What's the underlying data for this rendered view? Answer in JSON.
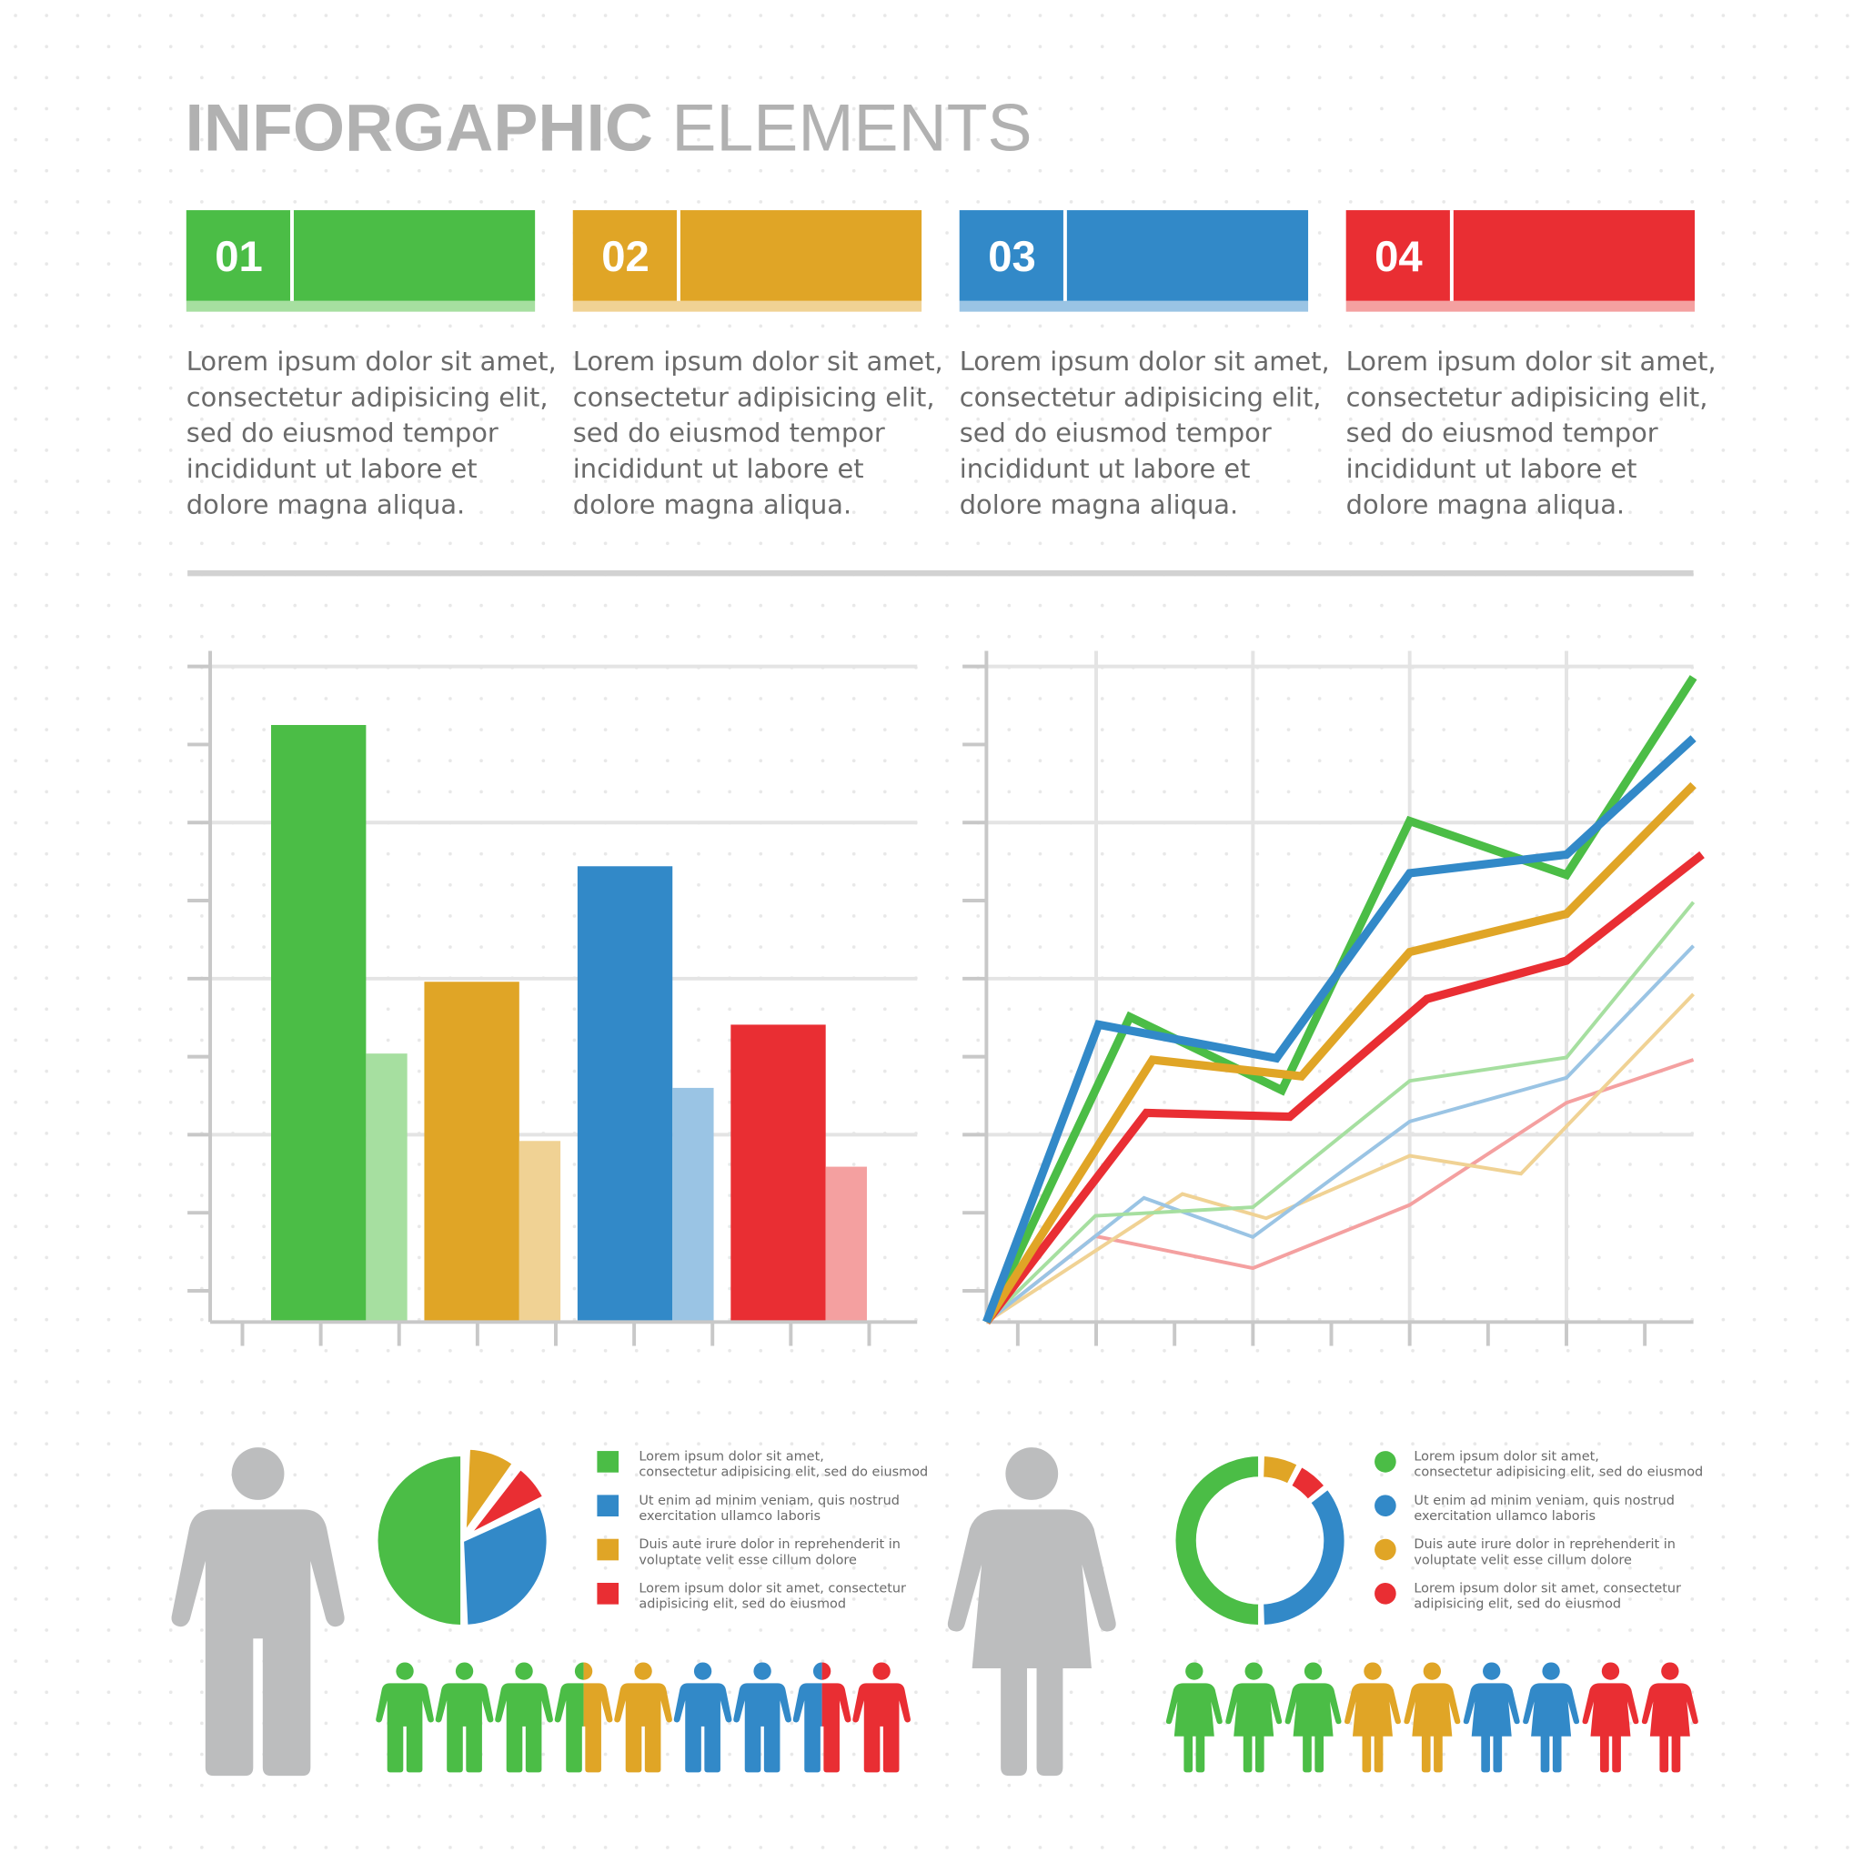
{
  "title": {
    "bold": "INFORGAPHIC",
    "light": "ELEMENTS"
  },
  "cards": [
    {
      "number": "01",
      "color": "#4bbd46",
      "light": "#a6dfa0",
      "text": [
        "Lorem ipsum dolor sit amet,",
        "consectetur adipisicing elit,",
        "sed do eiusmod tempor",
        "incididunt ut labore et",
        "dolore magna aliqua."
      ]
    },
    {
      "number": "02",
      "color": "#e0a526",
      "light": "#f0d294",
      "text": [
        "Lorem ipsum dolor sit amet,",
        "consectetur adipisicing elit,",
        "sed do eiusmod tempor",
        "incididunt ut labore et",
        "dolore magna aliqua."
      ]
    },
    {
      "number": "03",
      "color": "#3289c8",
      "light": "#9ac4e4",
      "text": [
        "Lorem ipsum dolor sit amet,",
        "consectetur adipisicing elit,",
        "sed do eiusmod tempor",
        "incididunt ut labore et",
        "dolore magna aliqua."
      ]
    },
    {
      "number": "04",
      "color": "#e92e33",
      "light": "#f4a0a0",
      "text": [
        "Lorem ipsum dolor sit amet,",
        "consectetur adipisicing elit,",
        "sed do eiusmod tempor",
        "incididunt ut labore et",
        "dolore magna aliqua."
      ]
    }
  ],
  "chart_data": [
    {
      "type": "bar",
      "categories": [
        null,
        null,
        null,
        null
      ],
      "series": [
        {
          "colors": [
            "#4bbd46",
            "#e0a526",
            "#3289c8",
            "#e92e33"
          ],
          "values": [
            76.5,
            43.6,
            58.4,
            38.1
          ]
        },
        {
          "colors": [
            "#a6dfa0",
            "#f0d294",
            "#9ac4e4",
            "#f4a0a0"
          ],
          "values": [
            34.4,
            23.2,
            30,
            19.9
          ]
        }
      ],
      "ylim": [
        0,
        86
      ],
      "yticks": [
        4,
        14,
        24,
        34,
        44,
        54,
        64,
        74,
        84
      ],
      "grid": true
    },
    {
      "type": "line",
      "xlim": [
        0,
        90.2
      ],
      "xticks": [
        4,
        14,
        24,
        34,
        44,
        54,
        64,
        74,
        84
      ],
      "ylim": [
        0,
        86
      ],
      "yticks": [
        4,
        14,
        24,
        34,
        44,
        54,
        64,
        74,
        84
      ],
      "grid": true,
      "series": [
        {
          "color": "#3289c8",
          "x": [
            0,
            14.3,
            37.0,
            54.0,
            74.0,
            90.2
          ],
          "values": [
            0,
            38.1,
            33.8,
            57.5,
            59.9,
            74.8
          ]
        },
        {
          "color": "#e0a526",
          "x": [
            0,
            21.2,
            40.2,
            54.0,
            74.0,
            90.2
          ],
          "values": [
            0,
            33.6,
            31.5,
            47.4,
            52.3,
            68.8
          ]
        },
        {
          "color": "#e92e33",
          "x": [
            0,
            20.4,
            38.7,
            56.2,
            74.0,
            91.3
          ],
          "values": [
            0,
            26.8,
            26.3,
            41.4,
            46.3,
            59.9
          ]
        },
        {
          "color": "#4bbd46",
          "x": [
            0,
            18.3,
            37.7,
            54.0,
            74.0,
            90.2
          ],
          "values": [
            0,
            39.1,
            29.7,
            64.2,
            57.3,
            82.6
          ]
        },
        {
          "color": "#a6dfa0",
          "x": [
            0,
            13.9,
            34.0,
            54.0,
            74.0,
            90.2
          ],
          "values": [
            0,
            13.6,
            14.7,
            30.9,
            33.9,
            53.8
          ]
        },
        {
          "color": "#9ac4e4",
          "x": [
            0,
            20.1,
            34.0,
            54.0,
            74.0,
            90.2
          ],
          "values": [
            0,
            15.9,
            10.9,
            25.7,
            31.3,
            48.2
          ]
        },
        {
          "color": "#f0d294",
          "x": [
            0,
            25.0,
            35.7,
            54.0,
            68.2,
            90.2
          ],
          "values": [
            0,
            16.4,
            13.3,
            21.3,
            19.0,
            42.0
          ]
        },
        {
          "color": "#f4a0a0",
          "x": [
            0,
            13.9,
            34.0,
            54.0,
            74.0,
            90.2
          ],
          "values": [
            0,
            11.0,
            6.9,
            15.0,
            28.1,
            33.6
          ]
        }
      ]
    },
    {
      "type": "pie",
      "values": [
        50,
        31,
        9,
        7
      ],
      "colors": [
        "#4bbd46",
        "#3289c8",
        "#e0a526",
        "#e92e33"
      ],
      "labels": [
        [
          "Lorem ipsum dolor sit amet,",
          "consectetur adipisicing elit, sed do eiusmod"
        ],
        [
          "Ut enim ad minim veniam, quis nostrud",
          "exercitation ullamco laboris"
        ],
        [
          "Duis aute irure dolor in reprehenderit in",
          "voluptate velit esse cillum dolore"
        ],
        [
          "Lorem ipsum dolor sit amet, consectetur",
          "adipisicing elit, sed do eiusmod"
        ]
      ]
    },
    {
      "type": "donut",
      "values": [
        50,
        35,
        7,
        6
      ],
      "colors": [
        "#4bbd46",
        "#3289c8",
        "#e0a526",
        "#e92e33"
      ],
      "labels": [
        [
          "Lorem ipsum dolor sit amet,",
          "consectetur adipisicing elit, sed do eiusmod"
        ],
        [
          "Ut enim ad minim veniam, quis nostrud",
          "exercitation ullamco laboris"
        ],
        [
          "Duis aute irure dolor in reprehenderit in",
          "voluptate velit esse cillum dolore"
        ],
        [
          "Lorem ipsum dolor sit amet, consectetur",
          "adipisicing elit, sed do eiusmod"
        ]
      ]
    }
  ],
  "people": {
    "men": [
      "#4bbd46",
      "#4bbd46",
      "#4bbd46",
      [
        "#4bbd46",
        "#e0a526"
      ],
      "#e0a526",
      "#3289c8",
      "#3289c8",
      [
        "#3289c8",
        "#e92e33"
      ],
      "#e92e33"
    ],
    "women": [
      "#4bbd46",
      "#4bbd46",
      "#4bbd46",
      "#e0a526",
      "#e0a526",
      "#3289c8",
      "#3289c8",
      "#e92e33",
      "#e92e33"
    ]
  }
}
